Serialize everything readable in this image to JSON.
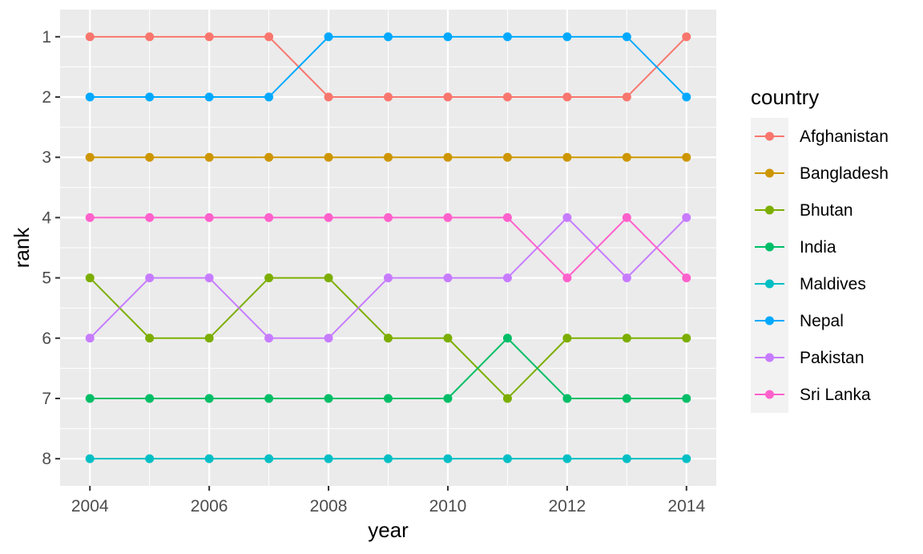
{
  "chart_data": {
    "type": "line",
    "xlabel": "year",
    "ylabel": "rank",
    "x": [
      2004,
      2005,
      2006,
      2007,
      2008,
      2009,
      2010,
      2011,
      2012,
      2013,
      2014
    ],
    "x_ticks": [
      2004,
      2006,
      2008,
      2010,
      2012,
      2014
    ],
    "y_ticks": [
      1,
      2,
      3,
      4,
      5,
      6,
      7,
      8
    ],
    "xlim": [
      2003.5,
      2014.5
    ],
    "ylim": [
      0.55,
      8.45
    ],
    "y_reversed": true,
    "grid": true,
    "panel_background": "#ebebeb",
    "legend": {
      "title": "country",
      "position": "right"
    },
    "series": [
      {
        "name": "Afghanistan",
        "color": "#F8766D",
        "values": [
          1,
          1,
          1,
          1,
          2,
          2,
          2,
          2,
          2,
          2,
          1
        ]
      },
      {
        "name": "Bangladesh",
        "color": "#CD9600",
        "values": [
          3,
          3,
          3,
          3,
          3,
          3,
          3,
          3,
          3,
          3,
          3
        ]
      },
      {
        "name": "Bhutan",
        "color": "#7CAE00",
        "values": [
          5,
          6,
          6,
          5,
          5,
          6,
          6,
          7,
          6,
          6,
          6
        ]
      },
      {
        "name": "India",
        "color": "#00BE67",
        "values": [
          7,
          7,
          7,
          7,
          7,
          7,
          7,
          6,
          7,
          7,
          7
        ]
      },
      {
        "name": "Maldives",
        "color": "#00BFC4",
        "values": [
          8,
          8,
          8,
          8,
          8,
          8,
          8,
          8,
          8,
          8,
          8
        ]
      },
      {
        "name": "Nepal",
        "color": "#00A9FF",
        "values": [
          2,
          2,
          2,
          2,
          1,
          1,
          1,
          1,
          1,
          1,
          2
        ]
      },
      {
        "name": "Pakistan",
        "color": "#C77CFF",
        "values": [
          6,
          5,
          5,
          6,
          6,
          5,
          5,
          5,
          4,
          5,
          4
        ]
      },
      {
        "name": "Sri Lanka",
        "color": "#FF61CC",
        "values": [
          4,
          4,
          4,
          4,
          4,
          4,
          4,
          4,
          5,
          4,
          5
        ]
      }
    ]
  }
}
